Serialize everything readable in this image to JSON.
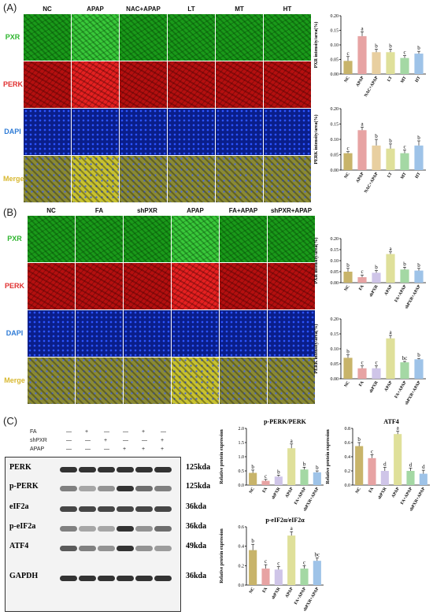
{
  "panels": {
    "a": "(A)",
    "b": "(B)",
    "c": "(C)"
  },
  "colors": {
    "pxr": "#2db52d",
    "perk": "#e03030",
    "dapi": "#2e7bd6",
    "merge": "#d8b830"
  },
  "panel_a": {
    "columns": [
      "NC",
      "APAP",
      "NAC+APAP",
      "LT",
      "MT",
      "HT"
    ],
    "rows": [
      "PXR",
      "PERK",
      "DAPI",
      "Merge"
    ]
  },
  "panel_b": {
    "columns": [
      "NC",
      "FA",
      "shPXR",
      "APAP",
      "FA+APAP",
      "shPXR+APAP"
    ],
    "rows": [
      "PXR",
      "PERK",
      "DAPI",
      "Merge"
    ]
  },
  "panel_c": {
    "treatments": [
      {
        "label": "FA",
        "marks": [
          "—",
          "+",
          "—",
          "—",
          "+",
          "—"
        ]
      },
      {
        "label": "shPXR",
        "marks": [
          "—",
          "—",
          "+",
          "—",
          "—",
          "+"
        ]
      },
      {
        "label": "APAP",
        "marks": [
          "—",
          "—",
          "—",
          "+",
          "+",
          "+"
        ]
      }
    ],
    "blots": [
      {
        "name": "PERK",
        "kda": "125kda"
      },
      {
        "name": "p-PERK",
        "kda": "125kda"
      },
      {
        "name": "eIF2a",
        "kda": "36kda"
      },
      {
        "name": "p-eIF2a",
        "kda": "36kda"
      },
      {
        "name": "ATF4",
        "kda": "49kda"
      },
      {
        "name": "GAPDH",
        "kda": "36kda"
      }
    ]
  },
  "chart_data": [
    {
      "type": "bar",
      "id": "a1",
      "title": "",
      "ylabel": "PXR intensity/area(%)",
      "ylim": [
        0,
        0.2
      ],
      "yticks": [
        "0.00",
        "0.05",
        "0.10",
        "0.15",
        "0.20"
      ],
      "categories": [
        "NC",
        "APAP",
        "NAC+APAP",
        "LT",
        "MT",
        "HT"
      ],
      "values": [
        0.045,
        0.13,
        0.075,
        0.075,
        0.055,
        0.07
      ],
      "errors": [
        0.015,
        0.015,
        0.01,
        0.01,
        0.008,
        0.008
      ],
      "letters": [
        "c",
        "a",
        "b",
        "b",
        "c",
        "b"
      ],
      "colors": [
        "#c8b46a",
        "#e7a3a3",
        "#e8cfa0",
        "#dfe09a",
        "#a4d8a4",
        "#9ec3e8"
      ]
    },
    {
      "type": "bar",
      "id": "a2",
      "title": "",
      "ylabel": "PERK intensity/area(%)",
      "ylim": [
        0,
        0.2
      ],
      "yticks": [
        "0.00",
        "0.05",
        "0.10",
        "0.15",
        "0.20"
      ],
      "categories": [
        "NC",
        "APAP",
        "NAC+APAP",
        "LT",
        "MT",
        "HT"
      ],
      "values": [
        0.055,
        0.13,
        0.08,
        0.07,
        0.055,
        0.08
      ],
      "errors": [
        0.005,
        0.01,
        0.02,
        0.015,
        0.01,
        0.015
      ],
      "letters": [
        "c",
        "a",
        "b",
        "b",
        "c",
        "b"
      ],
      "colors": [
        "#c8b46a",
        "#e7a3a3",
        "#e8cfa0",
        "#dfe09a",
        "#a4d8a4",
        "#9ec3e8"
      ]
    },
    {
      "type": "bar",
      "id": "b1",
      "title": "",
      "ylabel": "PXR intensity/area(%)",
      "ylim": [
        0,
        0.2
      ],
      "yticks": [
        "0.00",
        "0.05",
        "0.10",
        "0.15",
        "0.20"
      ],
      "categories": [
        "NC",
        "FA",
        "shPXR",
        "APAP",
        "FA+APAP",
        "shPXR+APAP"
      ],
      "values": [
        0.05,
        0.025,
        0.045,
        0.13,
        0.06,
        0.055
      ],
      "errors": [
        0.015,
        0.01,
        0.01,
        0.01,
        0.01,
        0.01
      ],
      "letters": [
        "b",
        "c",
        "b",
        "a",
        "b",
        "b"
      ],
      "colors": [
        "#c8b46a",
        "#e7a3a3",
        "#cfc5e8",
        "#dfe09a",
        "#a4d8a4",
        "#9ec3e8"
      ]
    },
    {
      "type": "bar",
      "id": "b2",
      "title": "",
      "ylabel": "PERK intensity/area(%)",
      "ylim": [
        0,
        0.2
      ],
      "yticks": [
        "0.00",
        "0.05",
        "0.10",
        "0.15",
        "0.20"
      ],
      "categories": [
        "NC",
        "FA",
        "shPXR",
        "APAP",
        "FA+APAP",
        "shPXR+APAP"
      ],
      "values": [
        0.07,
        0.035,
        0.035,
        0.135,
        0.055,
        0.065
      ],
      "errors": [
        0.01,
        0.008,
        0.008,
        0.01,
        0.003,
        0.003
      ],
      "letters": [
        "b",
        "c",
        "c",
        "a",
        "bc",
        "b"
      ],
      "colors": [
        "#c8b46a",
        "#e7a3a3",
        "#cfc5e8",
        "#dfe09a",
        "#a4d8a4",
        "#9ec3e8"
      ]
    },
    {
      "type": "bar",
      "id": "c1",
      "title": "p-PERK/PERK",
      "ylabel": "Relative protein expression",
      "ylim": [
        0,
        2.0
      ],
      "yticks": [
        "0.0",
        "0.5",
        "1.0",
        "1.5",
        "2.0"
      ],
      "categories": [
        "NC",
        "FA",
        "shPXR",
        "APAP",
        "FA+APAP",
        "shPXR+APAP"
      ],
      "values": [
        0.43,
        0.15,
        0.3,
        1.3,
        0.55,
        0.45
      ],
      "errors": [
        0.1,
        0.05,
        0.05,
        0.15,
        0.08,
        0.05
      ],
      "letters": [
        "b",
        "c",
        "b",
        "a",
        "b",
        "b"
      ],
      "colors": [
        "#c8b46a",
        "#e7a3a3",
        "#cfc5e8",
        "#dfe09a",
        "#a4d8a4",
        "#9ec3e8"
      ]
    },
    {
      "type": "bar",
      "id": "c2",
      "title": "ATF4",
      "ylabel": "Relative protein expression",
      "ylim": [
        0,
        0.8
      ],
      "yticks": [
        "0.0",
        "0.2",
        "0.4",
        "0.6",
        "0.8"
      ],
      "categories": [
        "NC",
        "FA",
        "shPXR",
        "APAP",
        "FA+APAP",
        "shPXR+APAP"
      ],
      "values": [
        0.55,
        0.38,
        0.2,
        0.72,
        0.2,
        0.16
      ],
      "errors": [
        0.05,
        0.05,
        0.05,
        0.04,
        0.04,
        0.05
      ],
      "letters": [
        "b",
        "c",
        "d",
        "a",
        "d",
        "d"
      ],
      "colors": [
        "#c8b46a",
        "#e7a3a3",
        "#cfc5e8",
        "#dfe09a",
        "#a4d8a4",
        "#9ec3e8"
      ]
    },
    {
      "type": "bar",
      "id": "c3",
      "title": "p-eIF2α/eIF2α",
      "ylabel": "Relative protein expression",
      "ylim": [
        0,
        0.6
      ],
      "yticks": [
        "0.0",
        "0.2",
        "0.4",
        "0.6"
      ],
      "categories": [
        "NC",
        "FA",
        "shPXR",
        "APAP",
        "FA+APAP",
        "shPXR+APAP"
      ],
      "values": [
        0.36,
        0.17,
        0.16,
        0.51,
        0.17,
        0.25
      ],
      "errors": [
        0.06,
        0.04,
        0.03,
        0.04,
        0.03,
        0.03
      ],
      "letters": [
        "b",
        "c",
        "c",
        "a",
        "c",
        "bc"
      ],
      "colors": [
        "#c8b46a",
        "#e7a3a3",
        "#cfc5e8",
        "#dfe09a",
        "#a4d8a4",
        "#9ec3e8"
      ]
    }
  ]
}
